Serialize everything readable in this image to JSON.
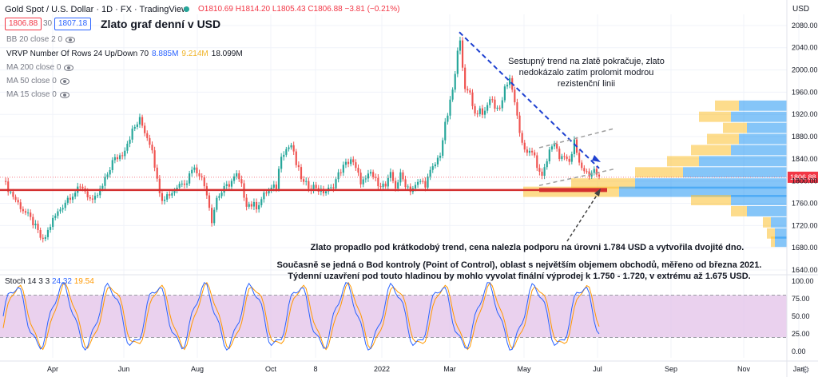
{
  "header": {
    "symbol": "Gold Spot / U.S. Dollar · 1D · FX · TradingView",
    "ohlc_line": "O1810.69 H1814.20 L1805.43 C1806.88 −3.81 (−0.21%)",
    "sell_price": "1806.88",
    "spread": "30",
    "buy_price": "1807.18",
    "currency": "USD"
  },
  "chart_title": "Zlato graf denní v USD",
  "indicators": [
    {
      "label": "BB 20 close 2 0"
    },
    {
      "label": "VRVP Number Of Rows 24 Up/Down 70",
      "v1": "8.885M",
      "v2": "9.214M",
      "v3": "18.099M"
    },
    {
      "label": "MA 200 close 0"
    },
    {
      "label": "MA 50 close 0"
    },
    {
      "label": "MA 15 close 0"
    }
  ],
  "annotations": {
    "trend": "Sestupný trend na zlatě pokračuje, zlato nedokázalo zatím prolomit modrou rezistenční linii",
    "support": "Zlato propadlo pod krátkodobý trend, cena nalezla podporu na úrovni 1.784 USD a vytvořila dvojité dno.",
    "poc_1": "Současně se jedná o Bod kontroly (Point of Control), oblast s největším objemem obchodů, měřeno od března 2021.",
    "poc_2": "Týdenní uzavření pod touto hladinou by mohlo vyvolat finální výprodej k 1.750 - 1.720, v extrému až 1.675 USD."
  },
  "stoch": {
    "label": "Stoch 14 3 3",
    "k": "24.32",
    "d": "19.54"
  },
  "chart_data": {
    "type": "candlestick",
    "price_axis": {
      "min": 1640,
      "max": 2100,
      "ticks": [
        "2080.00",
        "2040.00",
        "2000.00",
        "1960.00",
        "1920.00",
        "1880.00",
        "1840.00",
        "1800.00",
        "1760.00",
        "1720.00",
        "1680.00",
        "1640.00"
      ]
    },
    "last_price_label": "1806.88",
    "time_ticks": [
      "Apr",
      "Jun",
      "Aug",
      "Oct",
      "8",
      "2022",
      "Mar",
      "May",
      "Jul",
      "Sep",
      "Nov",
      "Jan"
    ],
    "stoch_ticks": [
      "100.00",
      "75.00",
      "50.00",
      "25.00",
      "0.00"
    ],
    "stoch_band": [
      20,
      80
    ],
    "close_path": [
      [
        0,
        1800
      ],
      [
        6,
        1760
      ],
      [
        12,
        1725
      ],
      [
        16,
        1690
      ],
      [
        20,
        1730
      ],
      [
        26,
        1770
      ],
      [
        32,
        1790
      ],
      [
        36,
        1760
      ],
      [
        40,
        1790
      ],
      [
        44,
        1835
      ],
      [
        48,
        1850
      ],
      [
        52,
        1890
      ],
      [
        55,
        1910
      ],
      [
        58,
        1880
      ],
      [
        60,
        1860
      ],
      [
        62,
        1800
      ],
      [
        64,
        1770
      ],
      [
        68,
        1780
      ],
      [
        72,
        1800
      ],
      [
        74,
        1800
      ],
      [
        76,
        1825
      ],
      [
        79,
        1815
      ],
      [
        82,
        1780
      ],
      [
        84,
        1730
      ],
      [
        86,
        1770
      ],
      [
        90,
        1790
      ],
      [
        94,
        1810
      ],
      [
        96,
        1790
      ],
      [
        98,
        1760
      ],
      [
        102,
        1755
      ],
      [
        106,
        1780
      ],
      [
        110,
        1790
      ],
      [
        112,
        1850
      ],
      [
        116,
        1865
      ],
      [
        118,
        1830
      ],
      [
        121,
        1795
      ],
      [
        124,
        1790
      ],
      [
        126,
        1790
      ],
      [
        128,
        1780
      ],
      [
        132,
        1785
      ],
      [
        136,
        1820
      ],
      [
        140,
        1840
      ],
      [
        144,
        1800
      ],
      [
        146,
        1800
      ],
      [
        148,
        1815
      ],
      [
        150,
        1800
      ],
      [
        152,
        1795
      ],
      [
        154,
        1790
      ],
      [
        156,
        1810
      ],
      [
        158,
        1790
      ],
      [
        160,
        1810
      ],
      [
        162,
        1795
      ],
      [
        164,
        1785
      ],
      [
        166,
        1790
      ],
      [
        168,
        1800
      ],
      [
        170,
        1795
      ],
      [
        172,
        1815
      ],
      [
        174,
        1830
      ],
      [
        176,
        1850
      ],
      [
        178,
        1900
      ],
      [
        180,
        1940
      ],
      [
        182,
        1990
      ],
      [
        183,
        2030
      ],
      [
        184,
        2060
      ],
      [
        186,
        1960
      ],
      [
        188,
        1960
      ],
      [
        190,
        1920
      ],
      [
        192,
        1930
      ],
      [
        194,
        1920
      ],
      [
        196,
        1950
      ],
      [
        198,
        1935
      ],
      [
        200,
        1930
      ],
      [
        202,
        1970
      ],
      [
        204,
        1980
      ],
      [
        206,
        1945
      ],
      [
        208,
        1880
      ],
      [
        210,
        1860
      ],
      [
        212,
        1850
      ],
      [
        214,
        1845
      ],
      [
        216,
        1810
      ],
      [
        218,
        1820
      ],
      [
        220,
        1855
      ],
      [
        222,
        1870
      ],
      [
        224,
        1840
      ],
      [
        226,
        1850
      ],
      [
        228,
        1830
      ],
      [
        230,
        1870
      ],
      [
        232,
        1830
      ],
      [
        234,
        1820
      ],
      [
        236,
        1812
      ],
      [
        238,
        1820
      ],
      [
        240,
        1806
      ]
    ]
  }
}
